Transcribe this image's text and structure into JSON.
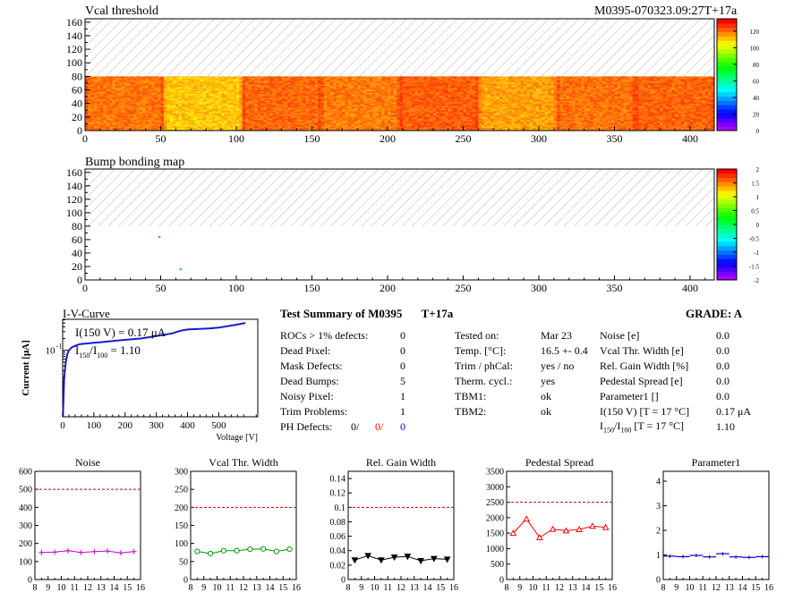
{
  "module_tag": "M0395-070323.09:27T+17a",
  "vcal_map": {
    "title": "Vcal threshold",
    "x_range": [
      0,
      416
    ],
    "y_range": [
      0,
      165
    ],
    "x_ticks": [
      0,
      50,
      100,
      150,
      200,
      250,
      300,
      350,
      400
    ],
    "y_ticks": [
      0,
      20,
      40,
      60,
      80,
      100,
      120,
      140,
      160
    ],
    "data_rows": [
      0,
      80
    ],
    "palette_ticks": [
      0,
      20,
      40,
      60,
      80,
      100,
      120
    ]
  },
  "bump_map": {
    "title": "Bump bonding map",
    "x_range": [
      0,
      416
    ],
    "y_range": [
      0,
      165
    ],
    "x_ticks": [
      0,
      50,
      100,
      150,
      200,
      250,
      300,
      350,
      400
    ],
    "y_ticks": [
      0,
      20,
      40,
      60,
      80,
      100,
      120,
      140,
      160
    ],
    "data_rows": [
      0,
      80
    ],
    "palette_ticks": [
      "-2",
      "-1.5",
      "-1",
      "-0.5",
      "0",
      "0.5",
      "1",
      "1.5",
      "2"
    ],
    "points": [
      [
        49,
        64
      ],
      [
        63,
        16
      ]
    ]
  },
  "iv_curve": {
    "title": "I-V-Curve",
    "ylabel": "Current [μA]",
    "xlabel": "Voltage [V]",
    "x_ticks": [
      "0",
      "100",
      "200",
      "300",
      "400",
      "500"
    ],
    "y_tick_label": "10",
    "y_tick_exp": "-1",
    "note1": "I(150 V) = 0.17 μA",
    "note2_a": "I",
    "note2_sub1": "150",
    "note2_b": "/I",
    "note2_sub2": "100",
    "note2_c": " = 1.10",
    "x": [
      1,
      5,
      10,
      15,
      20,
      30,
      40,
      50,
      60,
      80,
      100,
      120,
      150,
      200,
      250,
      300,
      350,
      380,
      400,
      470,
      500,
      550,
      585
    ],
    "y": [
      0.002,
      0.02,
      0.05,
      0.08,
      0.1,
      0.12,
      0.13,
      0.14,
      0.145,
      0.15,
      0.155,
      0.16,
      0.17,
      0.185,
      0.2,
      0.23,
      0.27,
      0.32,
      0.34,
      0.36,
      0.38,
      0.44,
      0.5
    ]
  },
  "summary": {
    "title": "Test Summary of M0395",
    "tag": "T+17a",
    "grade_label": "GRADE:  A",
    "col1": [
      {
        "label": "ROCs > 1% defects:",
        "value": "0"
      },
      {
        "label": "Dead Pixel:",
        "value": "0"
      },
      {
        "label": "Mask Defects:",
        "value": "0"
      },
      {
        "label": "Dead Bumps:",
        "value": "5"
      },
      {
        "label": "Noisy Pixel:",
        "value": "1"
      },
      {
        "label": "Trim Problems:",
        "value": "1"
      }
    ],
    "ph_label": "PH Defects:",
    "ph_values": [
      "0/",
      "0/",
      "0"
    ],
    "ph_colors": [
      "#000000",
      "#ff0000",
      "#0000ff"
    ],
    "col2": [
      {
        "label": "Tested on:",
        "value": "Mar 23"
      },
      {
        "label": "Temp. [°C]:",
        "value": "16.5 +- 0.4"
      },
      {
        "label": "Trim / phCal:",
        "value": "yes / no"
      },
      {
        "label": "Therm. cycl.:",
        "value": "yes"
      },
      {
        "label": "TBM1:",
        "value": "ok"
      },
      {
        "label": "TBM2:",
        "value": "ok"
      }
    ],
    "col3": [
      {
        "label": "Noise [e]",
        "value": "0.0"
      },
      {
        "label": "Vcal Thr. Width [e]",
        "value": "0.0"
      },
      {
        "label": "Rel. Gain Width [%]",
        "value": "0.0"
      },
      {
        "label": "Pedestal Spread [e]",
        "value": "0.0"
      },
      {
        "label": "Parameter1 []",
        "value": "0.0"
      },
      {
        "label": "I(150 V) [T = 17 °C]",
        "value": "0.17 μA"
      }
    ],
    "ratio_a": "I",
    "ratio_sub1": "150",
    "ratio_b": "/I",
    "ratio_sub2": "100",
    "ratio_c": "  [T = 17 °C]",
    "ratio_value": "1.10"
  },
  "chart_data": [
    {
      "type": "line",
      "title": "Noise",
      "color": "#cc00cc",
      "marker": "plus",
      "x": [
        8.5,
        9.5,
        10.5,
        11.5,
        12.5,
        13.5,
        14.5,
        15.5
      ],
      "values": [
        150,
        152,
        160,
        150,
        155,
        158,
        148,
        155
      ],
      "ylim": [
        0,
        600
      ],
      "limit": 500,
      "y_ticks": [
        0,
        100,
        200,
        300,
        400,
        500,
        600
      ],
      "xlim": [
        8,
        16
      ]
    },
    {
      "type": "line",
      "title": "Vcal Thr. Width",
      "color": "#009900",
      "marker": "circle",
      "x": [
        8.5,
        9.5,
        10.5,
        11.5,
        12.5,
        13.5,
        14.5,
        15.5
      ],
      "values": [
        78,
        72,
        80,
        80,
        84,
        85,
        78,
        84
      ],
      "ylim": [
        0,
        300
      ],
      "limit": 200,
      "y_ticks": [
        0,
        50,
        100,
        150,
        200,
        250,
        300
      ],
      "xlim": [
        8,
        16
      ]
    },
    {
      "type": "line",
      "title": "Rel. Gain Width",
      "color": "#000000",
      "marker": "triangle-down",
      "x": [
        8.5,
        9.5,
        10.5,
        11.5,
        12.5,
        13.5,
        14.5,
        15.5
      ],
      "values": [
        0.027,
        0.033,
        0.027,
        0.031,
        0.032,
        0.026,
        0.029,
        0.028
      ],
      "ylim": [
        0,
        0.15
      ],
      "limit": 0.1,
      "y_ticks": [
        0,
        0.02,
        0.04,
        0.06,
        0.08,
        0.1,
        0.12,
        0.14
      ],
      "xlim": [
        8,
        16
      ]
    },
    {
      "type": "line",
      "title": "Pedestal Spread",
      "color": "#ff0000",
      "marker": "triangle-up",
      "x": [
        8.5,
        9.5,
        10.5,
        11.5,
        12.5,
        13.5,
        14.5,
        15.5
      ],
      "values": [
        1500,
        1960,
        1360,
        1630,
        1580,
        1620,
        1730,
        1690
      ],
      "ylim": [
        0,
        3500
      ],
      "limit": 2500,
      "y_ticks": [
        0,
        500,
        1000,
        1500,
        2000,
        2500,
        3000,
        3500
      ],
      "xlim": [
        8,
        16
      ]
    },
    {
      "type": "line",
      "title": "Parameter1",
      "color": "#0000cc",
      "marker": "bar",
      "x": [
        8.5,
        9.5,
        10.5,
        11.5,
        12.5,
        13.5,
        14.5,
        15.5
      ],
      "values": [
        0.95,
        0.93,
        0.98,
        0.92,
        1.05,
        0.92,
        0.9,
        0.93
      ],
      "ylim": [
        0,
        4.4
      ],
      "y_ticks": [
        0,
        1,
        2,
        3,
        4
      ],
      "xlim": [
        8,
        16
      ]
    }
  ],
  "x_tick_labels": [
    "8",
    "9",
    "10",
    "11",
    "12",
    "13",
    "14",
    "15",
    "16"
  ]
}
